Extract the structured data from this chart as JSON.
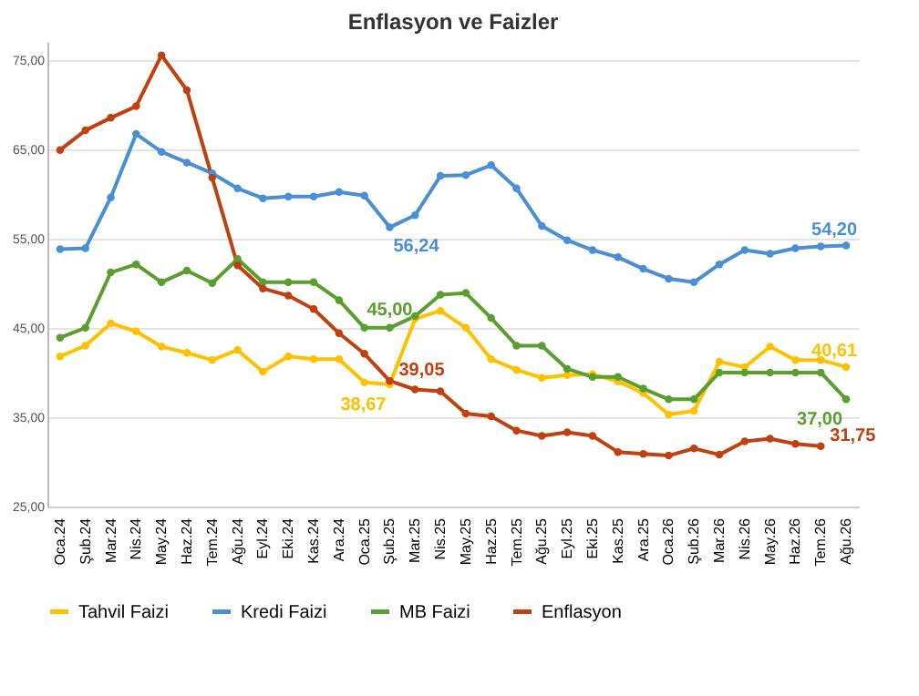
{
  "chart_data": {
    "type": "line",
    "title": "Enflasyon ve Faizler",
    "categories": [
      "Oca.24",
      "Şub.24",
      "Mar.24",
      "Nis.24",
      "May.24",
      "Haz.24",
      "Tem.24",
      "Ağu.24",
      "Eyl.24",
      "Eki.24",
      "Kas.24",
      "Ara.24",
      "Oca.25",
      "Şub.25",
      "Mar.25",
      "Nis.25",
      "May.25",
      "Haz.25",
      "Tem.25",
      "Ağu.25",
      "Eyl.25",
      "Eki.25",
      "Kas.25",
      "Ara.25",
      "Oca.26",
      "Şub.26",
      "Mar.26",
      "Nis.26",
      "May.26",
      "Haz.26",
      "Tem.26",
      "Ağu.26"
    ],
    "series": [
      {
        "name": "Tahvil Faizi",
        "color": "#ffc000",
        "values": [
          41.8,
          43.0,
          45.5,
          44.6,
          42.9,
          42.2,
          41.4,
          42.5,
          40.1,
          41.8,
          41.5,
          41.5,
          38.9,
          38.67,
          46.0,
          46.9,
          45.0,
          41.5,
          40.3,
          39.4,
          39.7,
          39.8,
          39.0,
          37.7,
          35.3,
          35.7,
          41.2,
          40.6,
          42.9,
          41.4,
          41.4,
          40.61
        ],
        "value_labels": [
          null,
          null,
          null,
          null,
          null,
          null,
          null,
          null,
          null,
          null,
          null,
          null,
          null,
          "38,67",
          null,
          null,
          null,
          null,
          null,
          null,
          null,
          null,
          null,
          null,
          null,
          null,
          null,
          null,
          null,
          null,
          null,
          "40,61"
        ]
      },
      {
        "name": "Kredi Faizi",
        "color": "#4a8fd4",
        "values": [
          53.8,
          53.9,
          59.6,
          66.7,
          64.7,
          63.5,
          62.3,
          60.6,
          59.5,
          59.7,
          59.7,
          60.2,
          59.8,
          56.24,
          57.6,
          62.0,
          62.1,
          63.2,
          60.6,
          56.4,
          54.8,
          53.7,
          52.9,
          51.6,
          50.5,
          50.1,
          52.1,
          53.7,
          53.3,
          53.9,
          54.1,
          54.2
        ],
        "value_labels": [
          null,
          null,
          null,
          null,
          null,
          null,
          null,
          null,
          null,
          null,
          null,
          null,
          null,
          "56,24",
          null,
          null,
          null,
          null,
          null,
          null,
          null,
          null,
          null,
          null,
          null,
          null,
          null,
          null,
          null,
          null,
          null,
          "54,20"
        ]
      },
      {
        "name": "MB Faizi",
        "color": "#5a9e2f",
        "values": [
          43.9,
          45.0,
          51.2,
          52.1,
          50.1,
          51.4,
          50.0,
          52.7,
          50.1,
          50.1,
          50.1,
          48.1,
          45.0,
          45.0,
          46.3,
          48.7,
          48.9,
          46.1,
          43.0,
          43.0,
          40.4,
          39.5,
          39.5,
          38.2,
          37.0,
          37.0,
          40.0,
          40.0,
          40.0,
          40.0,
          40.0,
          37.0
        ],
        "value_labels": [
          null,
          null,
          null,
          null,
          null,
          null,
          null,
          null,
          null,
          null,
          null,
          null,
          null,
          "45,00",
          null,
          null,
          null,
          null,
          null,
          null,
          null,
          null,
          null,
          null,
          null,
          null,
          null,
          null,
          null,
          null,
          null,
          "37,00"
        ]
      },
      {
        "name": "Enflasyon",
        "color": "#c0410f",
        "values": [
          64.9,
          67.1,
          68.5,
          69.8,
          75.5,
          71.6,
          61.8,
          52.0,
          49.4,
          48.6,
          47.1,
          44.4,
          42.1,
          39.05,
          38.1,
          37.9,
          35.4,
          35.1,
          33.5,
          32.9,
          33.3,
          32.9,
          31.1,
          30.9,
          30.7,
          31.5,
          30.8,
          32.3,
          32.6,
          32.0,
          31.75,
          null
        ],
        "value_labels": [
          null,
          null,
          null,
          null,
          null,
          null,
          null,
          null,
          null,
          null,
          null,
          null,
          null,
          "39,05",
          null,
          null,
          null,
          null,
          null,
          null,
          null,
          null,
          null,
          null,
          null,
          null,
          null,
          null,
          null,
          null,
          "31,75",
          null
        ]
      }
    ],
    "ylim": [
      25,
      77
    ],
    "yticks": [
      {
        "value": 25,
        "label": "25,00"
      },
      {
        "value": 35,
        "label": "35,00"
      },
      {
        "value": 45,
        "label": "45,00"
      },
      {
        "value": 55,
        "label": "55,00"
      },
      {
        "value": 65,
        "label": "65,00"
      },
      {
        "value": 75,
        "label": "75,00"
      }
    ],
    "grid": "y",
    "legend": "bottom",
    "marker": "circle",
    "line_style": "solid"
  }
}
